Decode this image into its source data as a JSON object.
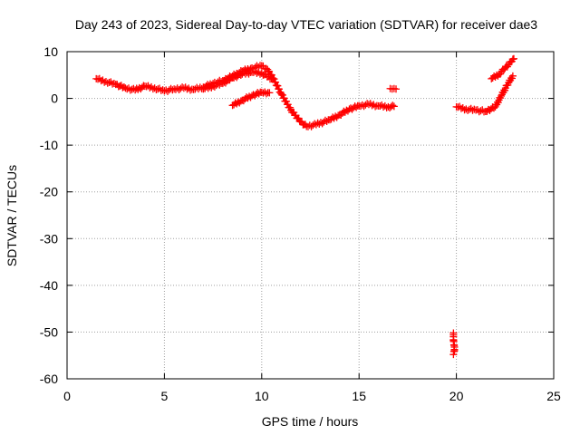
{
  "chart_data": {
    "type": "scatter",
    "title": "Day 243 of 2023, Sidereal Day-to-day VTEC variation (SDTVAR) for receiver dae3",
    "xlabel": "GPS time / hours",
    "ylabel": "SDTVAR / TECUs",
    "xlim": [
      0,
      25
    ],
    "ylim": [
      -60,
      10
    ],
    "xticks": [
      0,
      5,
      10,
      15,
      20,
      25
    ],
    "yticks": [
      10,
      0,
      -10,
      -20,
      -30,
      -40,
      -50,
      -60
    ],
    "grid": true,
    "marker": "+",
    "color": "#ff0000",
    "series": [
      {
        "name": "track-a",
        "points": [
          [
            1.5,
            4.2
          ],
          [
            2,
            3.6
          ],
          [
            2.5,
            3.0
          ],
          [
            3,
            2.2
          ],
          [
            3.5,
            1.8
          ],
          [
            4,
            2.6
          ],
          [
            4.5,
            2.2
          ],
          [
            5,
            1.6
          ],
          [
            5.5,
            2.0
          ],
          [
            6,
            2.2
          ],
          [
            6.5,
            1.9
          ],
          [
            7,
            2.4
          ],
          [
            7.5,
            3.2
          ],
          [
            8,
            3.8
          ],
          [
            8.5,
            4.8
          ],
          [
            9,
            5.8
          ],
          [
            9.5,
            6.5
          ],
          [
            10,
            7.0
          ],
          [
            10.3,
            6.2
          ],
          [
            10.6,
            4.2
          ],
          [
            11,
            1.0
          ],
          [
            11.5,
            -2.5
          ],
          [
            12,
            -5.0
          ],
          [
            12.3,
            -6.0
          ],
          [
            12.8,
            -5.6
          ],
          [
            13.5,
            -4.6
          ],
          [
            14,
            -3.5
          ],
          [
            14.5,
            -2.3
          ],
          [
            15,
            -1.6
          ],
          [
            15.5,
            -1.3
          ],
          [
            16,
            -1.6
          ],
          [
            16.5,
            -1.8
          ],
          [
            16.8,
            -1.7
          ]
        ]
      },
      {
        "name": "track-b",
        "points": [
          [
            7,
            2.0
          ],
          [
            7.5,
            2.6
          ],
          [
            8,
            3.2
          ],
          [
            8.5,
            4.4
          ],
          [
            9,
            5.2
          ],
          [
            9.5,
            5.6
          ],
          [
            10,
            5.4
          ],
          [
            10.5,
            4.2
          ]
        ]
      },
      {
        "name": "track-c",
        "points": [
          [
            8.5,
            -1.5
          ],
          [
            9,
            -0.4
          ],
          [
            9.5,
            0.6
          ],
          [
            10,
            1.3
          ],
          [
            10.4,
            1.2
          ]
        ]
      },
      {
        "name": "short-segment-16-7",
        "points": [
          [
            16.6,
            2.1
          ],
          [
            16.7,
            2.0
          ],
          [
            16.8,
            2.1
          ],
          [
            16.9,
            2.0
          ]
        ]
      },
      {
        "name": "outliers-19-8",
        "points": [
          [
            19.85,
            -50.2
          ],
          [
            19.85,
            -51.0
          ],
          [
            19.85,
            -51.8
          ],
          [
            19.9,
            -53.2
          ],
          [
            19.9,
            -54.0
          ],
          [
            19.85,
            -54.8
          ]
        ]
      },
      {
        "name": "track-d",
        "points": [
          [
            20,
            -1.8
          ],
          [
            20.5,
            -2.3
          ],
          [
            21,
            -2.5
          ],
          [
            21.5,
            -2.8
          ],
          [
            22,
            -1.8
          ],
          [
            22.3,
            0.5
          ],
          [
            22.6,
            2.8
          ],
          [
            22.9,
            4.8
          ]
        ]
      },
      {
        "name": "track-e",
        "points": [
          [
            21.8,
            4.2
          ],
          [
            22.2,
            5.2
          ],
          [
            22.5,
            6.5
          ],
          [
            22.8,
            7.8
          ],
          [
            22.95,
            8.5
          ]
        ]
      }
    ]
  }
}
